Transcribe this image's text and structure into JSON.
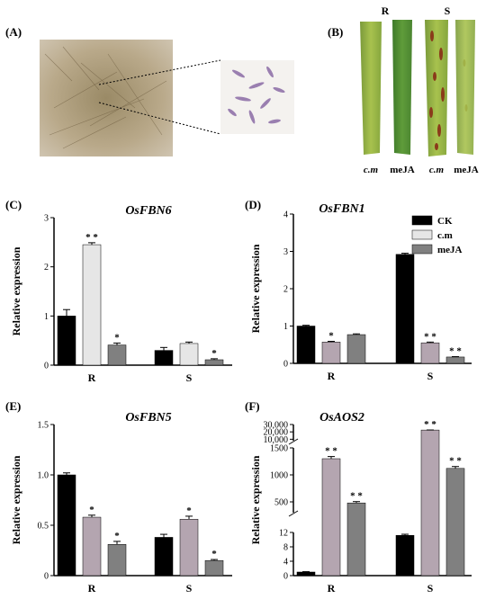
{
  "figure": {
    "panels": [
      "(A)",
      "(B)",
      "(C)",
      "(D)",
      "(E)",
      "(F)"
    ],
    "leaf_top_labels": [
      "R",
      "S"
    ],
    "leaf_bottom_labels": [
      "c.m",
      "meJA",
      "c.m",
      "meJA"
    ],
    "colors": {
      "CK": "#000000",
      "cm": "#e6e6e6",
      "cm_purple": "#b4a5b0",
      "meJA": "#808080"
    }
  },
  "legend": [
    "CK",
    "c.m",
    "meJA"
  ],
  "chart_data": [
    {
      "panel": "(C)",
      "type": "bar",
      "title": "OsFBN6",
      "ylabel": "Relative expression",
      "categories": [
        "R",
        "S"
      ],
      "ylim": [
        0,
        3
      ],
      "yticks": [
        "0",
        "1",
        "2",
        "3"
      ],
      "series": [
        {
          "name": "CK",
          "values": [
            1.0,
            0.3
          ],
          "err": [
            0.13,
            0.06
          ]
        },
        {
          "name": "c.m",
          "values": [
            2.45,
            0.44
          ],
          "err": [
            0.04,
            0.03
          ]
        },
        {
          "name": "meJA",
          "values": [
            0.41,
            0.11
          ],
          "err": [
            0.04,
            0.02
          ]
        }
      ],
      "marks": [
        [
          "",
          ""
        ],
        [
          "* *",
          ""
        ],
        [
          "*",
          "*"
        ]
      ]
    },
    {
      "panel": "(D)",
      "type": "bar",
      "title": "OsFBN1",
      "ylabel": "Relative expression",
      "categories": [
        "R",
        "S"
      ],
      "ylim": [
        0,
        4
      ],
      "yticks": [
        "0",
        "1",
        "2",
        "3",
        "4"
      ],
      "series": [
        {
          "name": "CK",
          "values": [
            1.0,
            2.92
          ],
          "err": [
            0.02,
            0.03
          ]
        },
        {
          "name": "c.m",
          "values": [
            0.57,
            0.55
          ],
          "err": [
            0.02,
            0.02
          ]
        },
        {
          "name": "meJA",
          "values": [
            0.77,
            0.17
          ],
          "err": [
            0.02,
            0.01
          ]
        }
      ],
      "marks": [
        [
          "",
          ""
        ],
        [
          "*",
          "* *"
        ],
        [
          "",
          "* *"
        ]
      ]
    },
    {
      "panel": "(E)",
      "type": "bar",
      "title": "OsFBN5",
      "ylabel": "Relative expression",
      "categories": [
        "R",
        "S"
      ],
      "ylim": [
        0,
        1.5
      ],
      "yticks": [
        "0",
        "0.5",
        "1.0",
        "1.5"
      ],
      "series": [
        {
          "name": "CK",
          "values": [
            1.0,
            0.38
          ],
          "err": [
            0.02,
            0.03
          ]
        },
        {
          "name": "c.m",
          "values": [
            0.58,
            0.56
          ],
          "err": [
            0.02,
            0.03
          ]
        },
        {
          "name": "meJA",
          "values": [
            0.31,
            0.15
          ],
          "err": [
            0.03,
            0.01
          ]
        }
      ],
      "marks": [
        [
          "",
          ""
        ],
        [
          "*",
          "*"
        ],
        [
          "*",
          "*"
        ]
      ]
    },
    {
      "panel": "(F)",
      "type": "bar",
      "title": "OsAOS2",
      "ylabel": "Relative expression",
      "categories": [
        "R",
        "S"
      ],
      "broken_axis": true,
      "axis_segments": [
        {
          "range": [
            0,
            12
          ],
          "ticks": [
            "0",
            "4",
            "8",
            "12"
          ]
        },
        {
          "range": [
            300,
            1500
          ],
          "ticks": [
            "500",
            "1000",
            "1500"
          ]
        },
        {
          "range": [
            8000,
            30000
          ],
          "ticks": [
            "10,000",
            "20,000",
            "30,000"
          ]
        }
      ],
      "series": [
        {
          "name": "CK",
          "values": [
            1,
            11.2
          ],
          "err": [
            0.1,
            0.3
          ]
        },
        {
          "name": "c.m",
          "values": [
            1300,
            22500
          ],
          "err": [
            40,
            100
          ]
        },
        {
          "name": "meJA",
          "values": [
            480,
            1120
          ],
          "err": [
            25,
            35
          ]
        }
      ],
      "marks": [
        [
          "",
          ""
        ],
        [
          "* *",
          "* *"
        ],
        [
          "* *",
          "* *"
        ]
      ]
    }
  ]
}
